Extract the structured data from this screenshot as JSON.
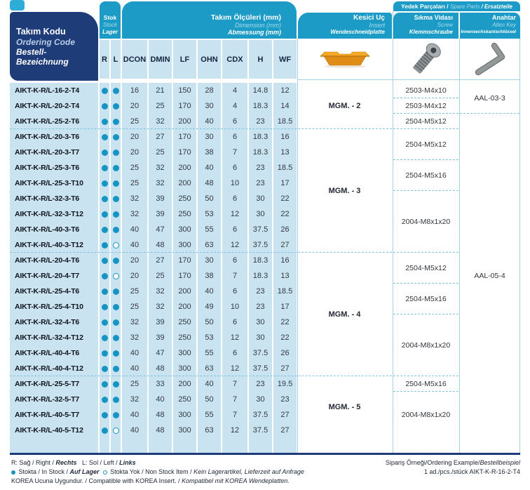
{
  "header": {
    "tool_code": {
      "line1": "Takım Kodu",
      "line2": "Ordering Code",
      "line3": "Bestell-Bezeichnung"
    },
    "stock": {
      "line1": "Stok",
      "line2": "Stock",
      "line3": "Lager"
    },
    "dimensions": {
      "line1": "Takım Ölçüleri (mm)",
      "line2": "Dimension (mm)",
      "line3": "Abmessung (mm)"
    },
    "insert": {
      "line1": "Kesici Uç",
      "line2": "Insert",
      "line3": "Wendeschneidplatte"
    },
    "spare_parts": {
      "a": "Yedek Parçaları / ",
      "b": "Spare Parts",
      "c": " / Ersatzteile"
    },
    "screw": {
      "line1": "Sıkma Vidası",
      "line2": "Screw",
      "line3": "Klemmschraube"
    },
    "allen_key": {
      "line1": "Anahtar",
      "line2": "Allen Key",
      "line3": "Innensechskantschlüssel"
    }
  },
  "columns": [
    "R",
    "L",
    "DCON",
    "DMIN",
    "LF",
    "OHN",
    "CDX",
    "H",
    "WF"
  ],
  "rows": [
    {
      "code": "AIKT-K-R/L-16-2-T4",
      "r": true,
      "l": true,
      "dims": [
        "16",
        "21",
        "150",
        "28",
        "4",
        "14.8",
        "12"
      ]
    },
    {
      "code": "AIKT-K-R/L-20-2-T4",
      "r": true,
      "l": true,
      "dims": [
        "20",
        "25",
        "170",
        "30",
        "4",
        "18.3",
        "14"
      ]
    },
    {
      "code": "AIKT-K-R/L-25-2-T6",
      "r": true,
      "l": true,
      "dims": [
        "25",
        "32",
        "200",
        "40",
        "6",
        "23",
        "18.5"
      ]
    },
    {
      "code": "AIKT-K-R/L-20-3-T6",
      "r": true,
      "l": true,
      "dims": [
        "20",
        "27",
        "170",
        "30",
        "6",
        "18.3",
        "16"
      ]
    },
    {
      "code": "AIKT-K-R/L-20-3-T7",
      "r": true,
      "l": true,
      "dims": [
        "20",
        "25",
        "170",
        "38",
        "7",
        "18.3",
        "13"
      ]
    },
    {
      "code": "AIKT-K-R/L-25-3-T6",
      "r": true,
      "l": true,
      "dims": [
        "25",
        "32",
        "200",
        "40",
        "6",
        "23",
        "18.5"
      ]
    },
    {
      "code": "AIKT-K-R/L-25-3-T10",
      "r": true,
      "l": true,
      "dims": [
        "25",
        "32",
        "200",
        "48",
        "10",
        "23",
        "17"
      ]
    },
    {
      "code": "AIKT-K-R/L-32-3-T6",
      "r": true,
      "l": true,
      "dims": [
        "32",
        "39",
        "250",
        "50",
        "6",
        "30",
        "22"
      ]
    },
    {
      "code": "AIKT-K-R/L-32-3-T12",
      "r": true,
      "l": true,
      "dims": [
        "32",
        "39",
        "250",
        "53",
        "12",
        "30",
        "22"
      ]
    },
    {
      "code": "AIKT-K-R/L-40-3-T6",
      "r": true,
      "l": true,
      "dims": [
        "40",
        "47",
        "300",
        "55",
        "6",
        "37.5",
        "26"
      ]
    },
    {
      "code": "AIKT-K-R/L-40-3-T12",
      "r": true,
      "l": false,
      "dims": [
        "40",
        "48",
        "300",
        "63",
        "12",
        "37.5",
        "27"
      ]
    },
    {
      "code": "AIKT-K-R/L-20-4-T6",
      "r": true,
      "l": true,
      "dims": [
        "20",
        "27",
        "170",
        "30",
        "6",
        "18.3",
        "16"
      ]
    },
    {
      "code": "AIKT-K-R/L-20-4-T7",
      "r": true,
      "l": false,
      "dims": [
        "20",
        "25",
        "170",
        "38",
        "7",
        "18.3",
        "13"
      ]
    },
    {
      "code": "AIKT-K-R/L-25-4-T6",
      "r": true,
      "l": true,
      "dims": [
        "25",
        "32",
        "200",
        "40",
        "6",
        "23",
        "18.5"
      ]
    },
    {
      "code": "AIKT-K-R/L-25-4-T10",
      "r": true,
      "l": true,
      "dims": [
        "25",
        "32",
        "200",
        "49",
        "10",
        "23",
        "17"
      ]
    },
    {
      "code": "AIKT-K-R/L-32-4-T6",
      "r": true,
      "l": true,
      "dims": [
        "32",
        "39",
        "250",
        "50",
        "6",
        "30",
        "22"
      ]
    },
    {
      "code": "AIKT-K-R/L-32-4-T12",
      "r": true,
      "l": true,
      "dims": [
        "32",
        "39",
        "250",
        "53",
        "12",
        "30",
        "22"
      ]
    },
    {
      "code": "AIKT-K-R/L-40-4-T6",
      "r": true,
      "l": true,
      "dims": [
        "40",
        "47",
        "300",
        "55",
        "6",
        "37.5",
        "26"
      ]
    },
    {
      "code": "AIKT-K-R/L-40-4-T12",
      "r": true,
      "l": true,
      "dims": [
        "40",
        "48",
        "300",
        "63",
        "12",
        "37.5",
        "27"
      ]
    },
    {
      "code": "AIKT-K-R/L-25-5-T7",
      "r": true,
      "l": true,
      "dims": [
        "25",
        "33",
        "200",
        "40",
        "7",
        "23",
        "19.5"
      ]
    },
    {
      "code": "AIKT-K-R/L-32-5-T7",
      "r": true,
      "l": true,
      "dims": [
        "32",
        "40",
        "250",
        "50",
        "7",
        "30",
        "23"
      ]
    },
    {
      "code": "AIKT-K-R/L-40-5-T7",
      "r": true,
      "l": true,
      "dims": [
        "40",
        "48",
        "300",
        "55",
        "7",
        "37.5",
        "27"
      ]
    },
    {
      "code": "AIKT-K-R/L-40-5-T12",
      "r": true,
      "l": false,
      "dims": [
        "40",
        "48",
        "300",
        "63",
        "12",
        "37.5",
        "27"
      ]
    }
  ],
  "groups": {
    "inserts": [
      {
        "label": "MGM. - 2",
        "from": 1,
        "to": 3
      },
      {
        "label": "MGM. - 3",
        "from": 4,
        "to": 11
      },
      {
        "label": "MGM. - 4",
        "from": 12,
        "to": 19
      },
      {
        "label": "MGM. - 5",
        "from": 20,
        "to": 23
      }
    ],
    "screws": [
      {
        "label": "2503-M4x10",
        "from": 1,
        "to": 1
      },
      {
        "label": "2503-M4x12",
        "from": 2,
        "to": 2
      },
      {
        "label": "2504-M5x12",
        "from": 3,
        "to": 3
      },
      {
        "label": "2504-M5x12",
        "from": 4,
        "to": 5
      },
      {
        "label": "2504-M5x16",
        "from": 6,
        "to": 7
      },
      {
        "label": "2004-M8x1x20",
        "from": 8,
        "to": 11
      },
      {
        "label": "2504-M5x12",
        "from": 12,
        "to": 13
      },
      {
        "label": "2504-M5x16",
        "from": 14,
        "to": 15
      },
      {
        "label": "2004-M8x1x20",
        "from": 16,
        "to": 19
      },
      {
        "label": "2504-M5x16",
        "from": 20,
        "to": 20
      },
      {
        "label": "2004-M8x1x20",
        "from": 21,
        "to": 23
      }
    ],
    "allen_keys": [
      {
        "label": "AAL-03-3",
        "from": 1,
        "to": 2
      },
      {
        "label": "AAL-05-4",
        "from": 3,
        "to": 23
      }
    ]
  },
  "footer": {
    "rl": {
      "a": "R: Sağ / Right / ",
      "b": "Rechts",
      "c": "   L: Sol / Left / ",
      "d": "Links"
    },
    "stock": {
      "a": " Stokta / In Stock / ",
      "b": "Auf Lager",
      "c": " Stokta Yok / Non Stock Item / ",
      "d": "Kein Lagerartikel, Lieferzeit auf Anfrage"
    },
    "korea": {
      "a": "KOREA Ucuna Uygundur. / Compatible with KOREA Insert. / ",
      "b": "Kompatibel mit KOREA Wendeplatten."
    },
    "example": {
      "a": "Sipariş Örneği/Ordering Example/",
      "b": "Bestellbeispiel",
      "line2": "1 ad./pcs./stück AIKT-K-R-16-2-T4"
    }
  },
  "icons": {
    "insert_image": "grooving-insert",
    "screw_image": "clamp-screw",
    "allen_key_image": "allen-key",
    "tab_marker": "page-tab"
  },
  "colors": {
    "cyan": "#1b9bc6",
    "navy": "#1e3c78",
    "light_blue": "#c9e3f1",
    "dot": "#1795c2",
    "insert_orange": "#eda12b"
  }
}
